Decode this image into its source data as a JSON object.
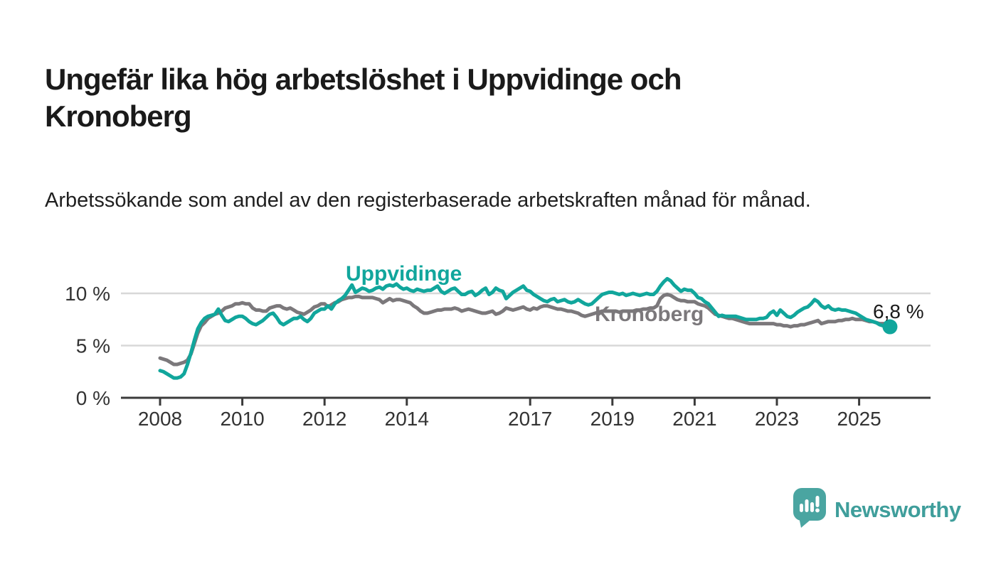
{
  "header": {
    "title": "Ungefär lika hög arbetslöshet i Uppvidinge och Kronoberg",
    "subtitle": "Arbetssökande som andel av den registerbaserade arbetskraften månad för månad."
  },
  "chart_data": {
    "type": "line",
    "unit": "%",
    "x_start": "2008-01",
    "x_resolution": "monthly",
    "x_tick_years": [
      2008,
      2010,
      2012,
      2014,
      2017,
      2019,
      2021,
      2023,
      2025
    ],
    "x_tick_labels": [
      "2008",
      "2010",
      "2012",
      "2014",
      "2017",
      "2019",
      "2021",
      "2023",
      "2025"
    ],
    "y_ticks": [
      {
        "value": 0,
        "label": "0 %"
      },
      {
        "value": 5,
        "label": "5 %"
      },
      {
        "value": 10,
        "label": "10 %"
      }
    ],
    "ylim": [
      0,
      13
    ],
    "grid": "horizontal",
    "legend_position": "inline-labels",
    "series": [
      {
        "name": "Uppvidinge",
        "color": "#11a69c",
        "values": [
          2.6,
          2.5,
          2.3,
          2.1,
          1.9,
          1.9,
          2.0,
          2.3,
          3.2,
          4.3,
          5.5,
          6.6,
          7.2,
          7.6,
          7.8,
          7.9,
          8.0,
          8.5,
          7.9,
          7.4,
          7.3,
          7.5,
          7.7,
          7.8,
          7.8,
          7.6,
          7.3,
          7.1,
          7.0,
          7.2,
          7.4,
          7.7,
          8.0,
          8.1,
          7.7,
          7.2,
          7.0,
          7.2,
          7.4,
          7.6,
          7.6,
          7.8,
          7.5,
          7.3,
          7.6,
          8.1,
          8.3,
          8.5,
          8.5,
          8.8,
          8.5,
          9.0,
          9.3,
          9.5,
          9.8,
          10.3,
          10.8,
          10.1,
          10.3,
          10.5,
          10.4,
          10.2,
          10.3,
          10.5,
          10.6,
          10.4,
          10.7,
          10.8,
          10.7,
          10.9,
          10.6,
          10.4,
          10.5,
          10.3,
          10.2,
          10.4,
          10.3,
          10.2,
          10.3,
          10.3,
          10.5,
          10.7,
          10.2,
          10.0,
          10.2,
          10.4,
          10.5,
          10.2,
          9.9,
          9.9,
          10.1,
          10.2,
          9.8,
          10.0,
          10.3,
          10.5,
          9.9,
          10.1,
          10.5,
          10.3,
          10.2,
          9.5,
          9.8,
          10.1,
          10.3,
          10.5,
          10.7,
          10.3,
          10.2,
          9.9,
          9.7,
          9.5,
          9.3,
          9.2,
          9.4,
          9.5,
          9.2,
          9.3,
          9.4,
          9.2,
          9.1,
          9.2,
          9.4,
          9.2,
          9.0,
          8.9,
          9.0,
          9.3,
          9.6,
          9.9,
          10.0,
          10.1,
          10.1,
          10.0,
          9.9,
          10.0,
          9.8,
          9.9,
          10.0,
          9.9,
          9.8,
          9.9,
          10.0,
          9.9,
          9.9,
          10.2,
          10.7,
          11.1,
          11.4,
          11.2,
          10.8,
          10.5,
          10.2,
          10.4,
          10.3,
          10.3,
          10.0,
          9.6,
          9.5,
          9.2,
          9.0,
          8.6,
          8.2,
          7.8,
          7.9,
          7.8,
          7.8,
          7.8,
          7.8,
          7.7,
          7.6,
          7.5,
          7.5,
          7.5,
          7.5,
          7.6,
          7.6,
          7.7,
          8.1,
          8.3,
          7.9,
          8.4,
          8.1,
          7.8,
          7.7,
          7.9,
          8.2,
          8.4,
          8.6,
          8.7,
          9.0,
          9.4,
          9.2,
          8.8,
          8.6,
          8.8,
          8.5,
          8.4,
          8.5,
          8.4,
          8.4,
          8.3,
          8.2,
          8.1,
          7.9,
          7.7,
          7.5,
          7.4,
          7.3,
          7.2,
          7.0,
          6.9,
          6.9,
          6.8
        ]
      },
      {
        "name": "Kronoberg",
        "color": "#7b787b",
        "values": [
          3.8,
          3.7,
          3.6,
          3.4,
          3.2,
          3.2,
          3.3,
          3.4,
          3.6,
          4.2,
          5.2,
          6.2,
          6.9,
          7.2,
          7.6,
          7.8,
          8.0,
          8.1,
          8.3,
          8.6,
          8.7,
          8.8,
          9.0,
          9.0,
          9.1,
          9.0,
          9.0,
          8.6,
          8.4,
          8.4,
          8.3,
          8.3,
          8.6,
          8.7,
          8.8,
          8.8,
          8.6,
          8.5,
          8.6,
          8.4,
          8.2,
          8.1,
          8.0,
          8.2,
          8.4,
          8.7,
          8.8,
          9.0,
          9.0,
          8.7,
          8.9,
          9.1,
          9.2,
          9.4,
          9.5,
          9.6,
          9.6,
          9.7,
          9.7,
          9.6,
          9.6,
          9.6,
          9.6,
          9.5,
          9.4,
          9.1,
          9.3,
          9.5,
          9.3,
          9.4,
          9.4,
          9.3,
          9.2,
          9.1,
          8.8,
          8.6,
          8.3,
          8.1,
          8.1,
          8.2,
          8.3,
          8.4,
          8.4,
          8.5,
          8.5,
          8.5,
          8.6,
          8.5,
          8.3,
          8.4,
          8.5,
          8.4,
          8.3,
          8.2,
          8.1,
          8.1,
          8.2,
          8.3,
          8.0,
          8.1,
          8.3,
          8.6,
          8.5,
          8.4,
          8.5,
          8.6,
          8.7,
          8.5,
          8.4,
          8.6,
          8.5,
          8.7,
          8.8,
          8.8,
          8.7,
          8.6,
          8.5,
          8.5,
          8.4,
          8.3,
          8.3,
          8.2,
          8.1,
          7.9,
          7.8,
          7.9,
          8.0,
          8.1,
          8.2,
          8.3,
          8.3,
          8.3,
          8.3,
          8.3,
          8.2,
          8.3,
          8.3,
          8.3,
          8.3,
          8.4,
          8.4,
          8.5,
          8.5,
          8.6,
          8.6,
          8.8,
          9.5,
          9.8,
          9.9,
          9.8,
          9.6,
          9.4,
          9.3,
          9.3,
          9.2,
          9.2,
          9.2,
          9.0,
          8.9,
          8.8,
          8.6,
          8.3,
          8.0,
          7.9,
          7.8,
          7.7,
          7.6,
          7.6,
          7.5,
          7.4,
          7.3,
          7.2,
          7.1,
          7.1,
          7.1,
          7.1,
          7.1,
          7.1,
          7.1,
          7.1,
          7.0,
          7.0,
          6.9,
          6.9,
          6.8,
          6.9,
          6.9,
          7.0,
          7.0,
          7.1,
          7.2,
          7.3,
          7.4,
          7.1,
          7.2,
          7.3,
          7.3,
          7.3,
          7.4,
          7.4,
          7.5,
          7.5,
          7.6,
          7.5,
          7.5,
          7.5,
          7.4,
          7.3,
          7.3,
          7.2,
          7.1,
          7.1,
          7.1
        ]
      }
    ],
    "end_annotation": {
      "series": "Uppvidinge",
      "label": "6,8 %",
      "value": 6.8
    }
  },
  "branding": {
    "logo_text": "Newsworthy",
    "logo_color": "#3f9e9b",
    "logo_icon": "bar-chart-speech-bubble-icon"
  },
  "colors": {
    "background": "#ffffff",
    "title_text": "#1a1a1a",
    "axis": "#3b3b3b",
    "gridline": "#d8d8d8",
    "tick_label": "#333333"
  }
}
